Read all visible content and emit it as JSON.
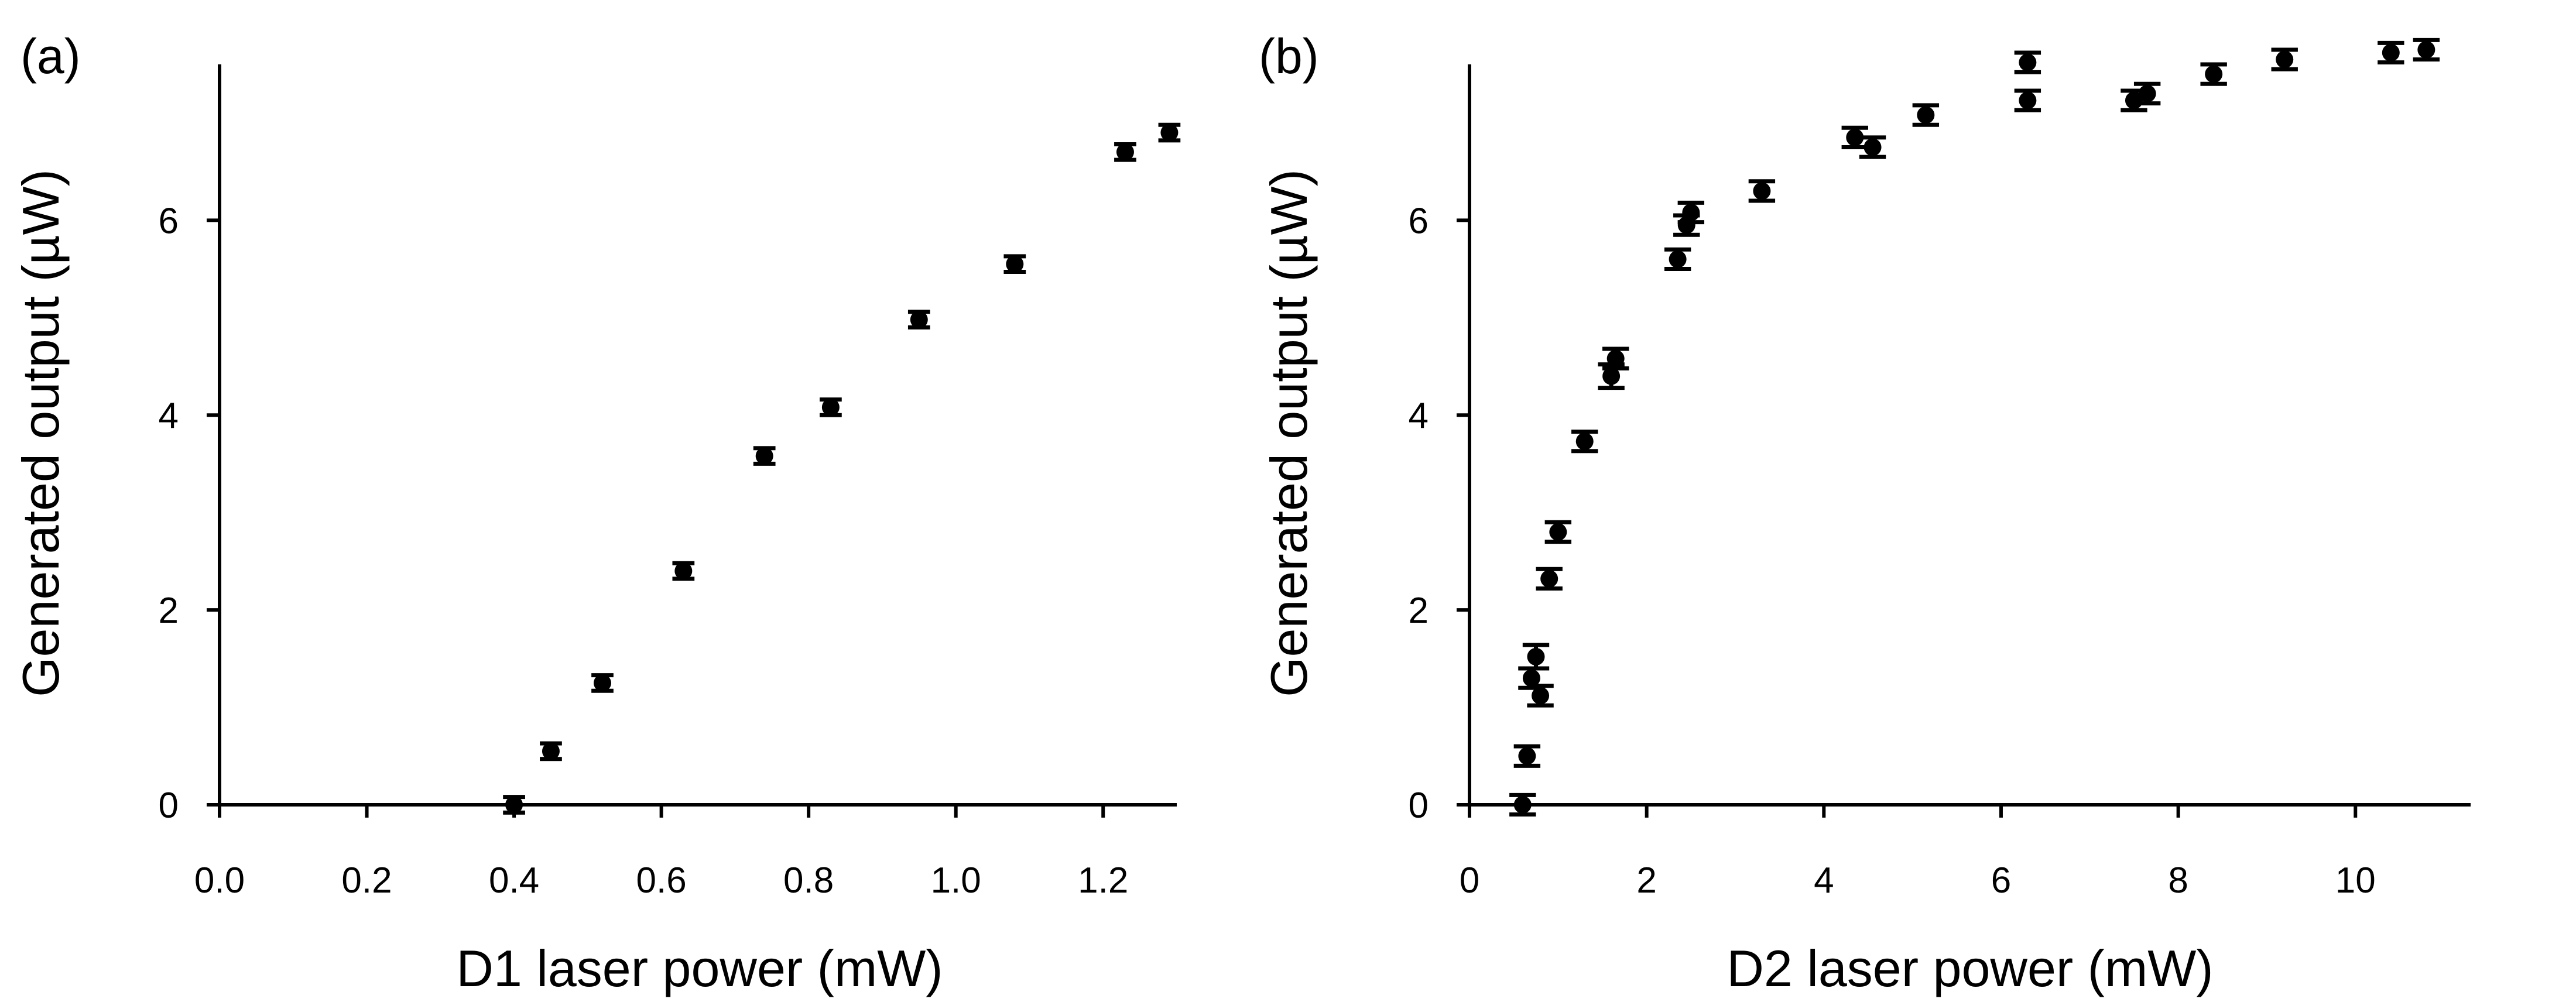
{
  "chart_data": [
    {
      "type": "scatter",
      "panel_label": "(a)",
      "xlabel": "D1 laser power (mW)",
      "ylabel": "Generated output (µW)",
      "xlim": [
        0.0,
        1.3
      ],
      "ylim": [
        0,
        7.6
      ],
      "xticks": [
        0.0,
        0.2,
        0.4,
        0.6,
        0.8,
        1.0,
        1.2
      ],
      "xtick_labels": [
        "0.0",
        "0.2",
        "0.4",
        "0.6",
        "0.8",
        "1.0",
        "1.2"
      ],
      "yticks": [
        0,
        2,
        4,
        6
      ],
      "ytick_labels": [
        "0",
        "2",
        "4",
        "6"
      ],
      "error_bars": true,
      "series": [
        {
          "name": "D1",
          "x": [
            0.4,
            0.45,
            0.52,
            0.63,
            0.74,
            0.83,
            0.95,
            1.08,
            1.23,
            1.29
          ],
          "y": [
            0.0,
            0.55,
            1.25,
            2.4,
            3.58,
            4.08,
            4.98,
            5.55,
            6.7,
            6.9
          ],
          "yerr": [
            0.08,
            0.08,
            0.08,
            0.08,
            0.08,
            0.08,
            0.08,
            0.08,
            0.08,
            0.08
          ],
          "xerr": [
            0.015,
            0.015,
            0.015,
            0.015,
            0.015,
            0.015,
            0.015,
            0.015,
            0.015,
            0.015
          ]
        }
      ]
    },
    {
      "type": "scatter",
      "panel_label": "(b)",
      "xlabel": "D2 laser power (mW)",
      "ylabel": "Generated output (µW)",
      "xlim": [
        0,
        11.3
      ],
      "ylim": [
        0,
        7.6
      ],
      "xticks": [
        0,
        2,
        4,
        6,
        8,
        10
      ],
      "xtick_labels": [
        "0",
        "2",
        "4",
        "6",
        "8",
        "10"
      ],
      "yticks": [
        0,
        2,
        4,
        6
      ],
      "ytick_labels": [
        "0",
        "2",
        "4",
        "6"
      ],
      "error_bars": true,
      "series": [
        {
          "name": "D2",
          "x": [
            0.6,
            0.65,
            0.7,
            0.75,
            0.8,
            0.9,
            1.0,
            1.3,
            1.6,
            1.65,
            2.35,
            2.45,
            2.5,
            3.3,
            4.35,
            4.55,
            5.15,
            6.3,
            6.3,
            7.5,
            7.65,
            8.4,
            9.2,
            10.4,
            10.8
          ],
          "y": [
            0.0,
            0.5,
            1.3,
            1.52,
            1.12,
            2.32,
            2.8,
            3.73,
            4.4,
            4.58,
            5.6,
            5.95,
            6.08,
            6.3,
            6.85,
            6.75,
            7.08,
            7.62,
            7.23,
            7.23,
            7.3,
            7.5,
            7.65,
            7.72,
            7.75
          ],
          "yerr": [
            0.1,
            0.1,
            0.1,
            0.12,
            0.1,
            0.1,
            0.1,
            0.1,
            0.12,
            0.1,
            0.1,
            0.1,
            0.1,
            0.1,
            0.1,
            0.1,
            0.1,
            0.1,
            0.1,
            0.1,
            0.1,
            0.1,
            0.1,
            0.1,
            0.1
          ],
          "xerr": [
            0.15,
            0.15,
            0.15,
            0.15,
            0.15,
            0.15,
            0.15,
            0.15,
            0.15,
            0.15,
            0.15,
            0.15,
            0.15,
            0.15,
            0.15,
            0.15,
            0.15,
            0.15,
            0.15,
            0.15,
            0.15,
            0.15,
            0.15,
            0.15,
            0.15
          ]
        }
      ]
    }
  ]
}
